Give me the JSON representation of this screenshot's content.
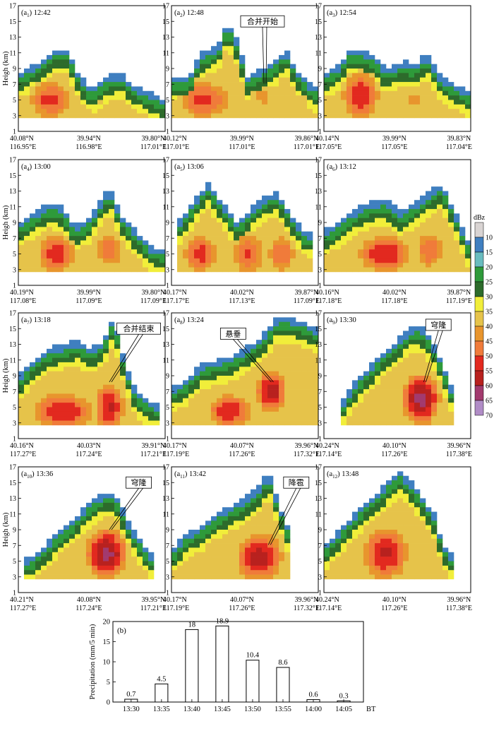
{
  "chart_data": {
    "type": "multi-panel radar cross-sections with precipitation bar chart",
    "panels": [
      {
        "id": "a1",
        "label_base": "a",
        "label_sub": "1",
        "time": "12:42",
        "lat": [
          "40.08°N",
          "39.94°N",
          "39.80°N"
        ],
        "lon": [
          "116.95°E",
          "116.98°E",
          "117.01°E"
        ]
      },
      {
        "id": "a2",
        "label_base": "a",
        "label_sub": "2",
        "time": "12:48",
        "lat": [
          "40.12°N",
          "39.99°N",
          "39.86°N"
        ],
        "lon": [
          "117.01°E",
          "117.01°E",
          "117.01°E"
        ],
        "annotation": "合并开始"
      },
      {
        "id": "a3",
        "label_base": "a",
        "label_sub": "3",
        "time": "12:54",
        "lat": [
          "40.14°N",
          "39.99°N",
          "39.83°N"
        ],
        "lon": [
          "117.05°E",
          "117.05°E",
          "117.04°E"
        ]
      },
      {
        "id": "a4",
        "label_base": "a",
        "label_sub": "4",
        "time": "13:00",
        "lat": [
          "40.19°N",
          "39.99°N",
          "39.80°N"
        ],
        "lon": [
          "117.08°E",
          "117.09°E",
          "117.09°E"
        ]
      },
      {
        "id": "a5",
        "label_base": "a",
        "label_sub": "5",
        "time": "13:06",
        "lat": [
          "40.17°N",
          "40.02°N",
          "39.87°N"
        ],
        "lon": [
          "117.17°E",
          "117.13°E",
          "117.09°E"
        ]
      },
      {
        "id": "a6",
        "label_base": "a",
        "label_sub": "6",
        "time": "13:12",
        "lat": [
          "40.16°N",
          "40.02°N",
          "39.87°N"
        ],
        "lon": [
          "117.18°E",
          "117.18°E",
          "117.19°E"
        ]
      },
      {
        "id": "a7",
        "label_base": "a",
        "label_sub": "7",
        "time": "13:18",
        "lat": [
          "40.16°N",
          "40.03°N",
          "39.91°N"
        ],
        "lon": [
          "117.27°E",
          "117.24°E",
          "117.21°E"
        ],
        "annotation": "合并结束"
      },
      {
        "id": "a8",
        "label_base": "a",
        "label_sub": "8",
        "time": "13:24",
        "lat": [
          "40.17°N",
          "40.07°N",
          "39.96°N"
        ],
        "lon": [
          "117.19°E",
          "117.26°E",
          "117.32°E"
        ],
        "annotation": "悬垂"
      },
      {
        "id": "a9",
        "label_base": "a",
        "label_sub": "9",
        "time": "13:30",
        "lat": [
          "40.24°N",
          "40.10°N",
          "39.96°N"
        ],
        "lon": [
          "117.14°E",
          "117.26°E",
          "117.38°E"
        ],
        "annotation": "穹隆"
      },
      {
        "id": "a10",
        "label_base": "a",
        "label_sub": "10",
        "time": "13:36",
        "lat": [
          "40.21°N",
          "40.08°N",
          "39.95°N"
        ],
        "lon": [
          "117.27°E",
          "117.24°E",
          "117.21°E"
        ],
        "annotation": "穹隆"
      },
      {
        "id": "a11",
        "label_base": "a",
        "label_sub": "11",
        "time": "13:42",
        "lat": [
          "40.17°N",
          "40.07°N",
          "39.96°N"
        ],
        "lon": [
          "117.19°E",
          "117.26°E",
          "117.32°E"
        ],
        "annotation": "降雹"
      },
      {
        "id": "a12",
        "label_base": "a",
        "label_sub": "12",
        "time": "13:48",
        "lat": [
          "40.24°N",
          "40.10°N",
          "39.96°N"
        ],
        "lon": [
          "117.14°E",
          "117.26°E",
          "117.38°E"
        ]
      }
    ],
    "radar_ylabel": "Heigh (km)",
    "radar_yticks": [
      "1",
      "3",
      "5",
      "7",
      "9",
      "11",
      "13",
      "15",
      "17"
    ],
    "colorbar": {
      "title": "dBz",
      "levels": [
        "10",
        "15",
        "20",
        "25",
        "30",
        "35",
        "40",
        "45",
        "50",
        "55",
        "60",
        "65",
        "70"
      ],
      "colors": [
        "#d9d4d3",
        "#3f7fc0",
        "#69bcbf",
        "#2e9a3a",
        "#2d6b2b",
        "#f1ee3a",
        "#e6c34a",
        "#e8952d",
        "#f07b3a",
        "#e2291f",
        "#b8211e",
        "#a23a6e",
        "#b08cc6"
      ]
    },
    "precip": {
      "label": "(b)",
      "categories": [
        "13:30",
        "13:35",
        "13:40",
        "13:45",
        "13:50",
        "13:55",
        "14:00",
        "14:05"
      ],
      "values": [
        0.7,
        4.5,
        18,
        18.9,
        10.4,
        8.6,
        0.6,
        0.3
      ],
      "value_labels": [
        "0.7",
        "4.5",
        "18",
        "18.9",
        "10.4",
        "8.6",
        "0.6",
        "0.3"
      ],
      "ylabel": "Precipitation (mm/5 min)",
      "xunit": "BT",
      "yticks": [
        "0",
        "5",
        "10",
        "15",
        "20"
      ],
      "ylim": [
        0,
        20
      ]
    }
  }
}
